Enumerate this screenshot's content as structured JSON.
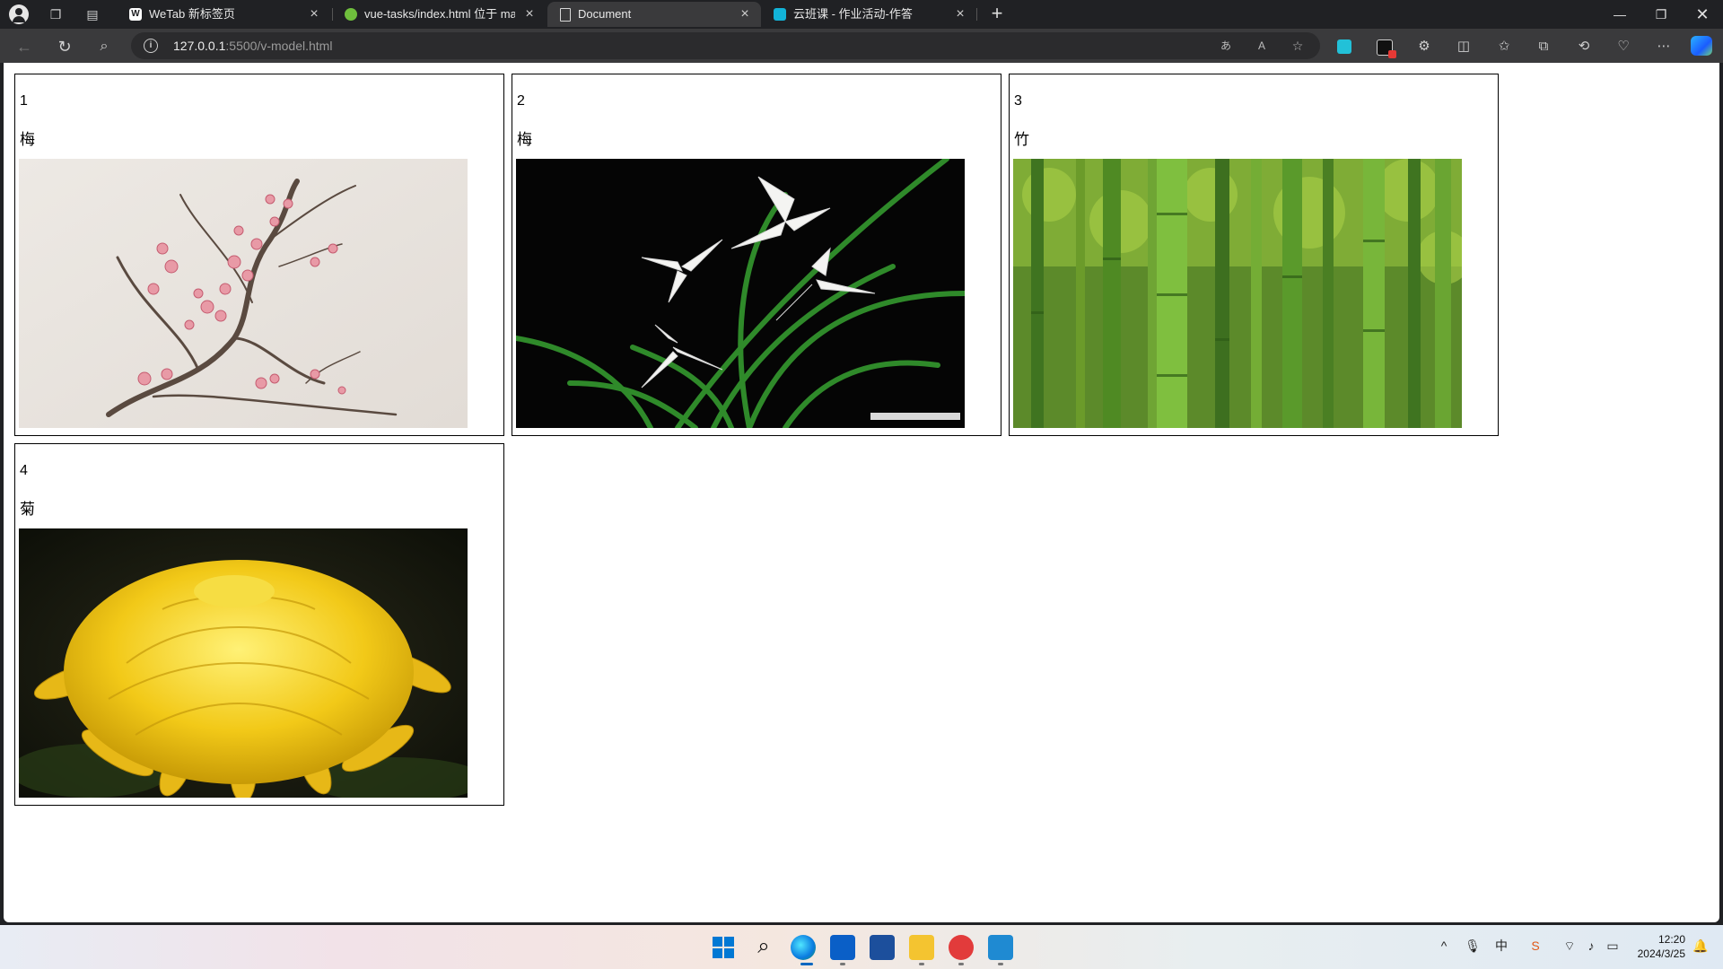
{
  "browser": {
    "tabs": [
      {
        "title": "WeTab 新标签页",
        "active": false,
        "favicon": "wetab-icon"
      },
      {
        "title": "vue-tasks/index.html 位于 maste",
        "active": false,
        "favicon": "gitee-icon"
      },
      {
        "title": "Document",
        "active": true,
        "favicon": "document-icon"
      },
      {
        "title": "云班课 - 作业活动-作答",
        "active": false,
        "favicon": "mosoteach-icon"
      }
    ],
    "address": {
      "host": "127.0.0.1",
      "rest": ":5500/v-model.html"
    }
  },
  "page": {
    "items": [
      {
        "id": "1",
        "name": "梅",
        "image": "plum-blossom-painting"
      },
      {
        "id": "2",
        "name": "梅",
        "image": "white-orchid-photo"
      },
      {
        "id": "3",
        "name": "竹",
        "image": "bamboo-forest-photo"
      },
      {
        "id": "4",
        "name": "菊",
        "image": "yellow-chrysanthemum-photo"
      }
    ]
  },
  "taskbar": {
    "time": "12:20",
    "date": "2024/3/25"
  },
  "colors": {
    "chrome_bg": "#202124",
    "toolbar_bg": "#3a3a3c",
    "edge_accent": "#1a73e8"
  }
}
